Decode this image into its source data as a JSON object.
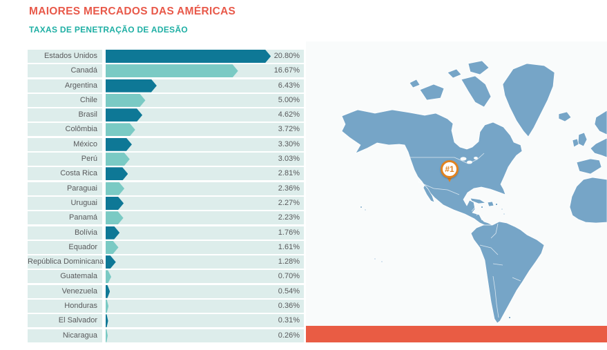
{
  "header": {
    "title": "MAIORES MERCADOS DAS AMÉRICAS",
    "subtitle": "TAXAS DE PENETRAÇÃO DE ADESÃO"
  },
  "chart_data": {
    "type": "bar",
    "orientation": "horizontal",
    "title": "MAIORES MERCADOS DAS AMÉRICAS",
    "subtitle": "TAXAS DE PENETRAÇÃO DE ADESÃO",
    "unit": "%",
    "xlim": [
      0,
      21
    ],
    "grid": false,
    "legend": false,
    "categories": [
      "Estados Unidos",
      "Canadá",
      "Argentina",
      "Chile",
      "Brasil",
      "Colômbia",
      "México",
      "Perú",
      "Costa Rica",
      "Paraguai",
      "Uruguai",
      "Panamá",
      "Bolívia",
      "Equador",
      "República Dominicana",
      "Guatemala",
      "Venezuela",
      "Honduras",
      "El Salvador",
      "Nicaragua"
    ],
    "values": [
      20.8,
      16.67,
      6.43,
      5.0,
      4.62,
      3.72,
      3.3,
      3.03,
      2.81,
      2.36,
      2.27,
      2.23,
      1.76,
      1.61,
      1.28,
      0.7,
      0.54,
      0.36,
      0.31,
      0.26
    ],
    "value_labels": [
      "20.80%",
      "16.67%",
      "6.43%",
      "5.00%",
      "4.62%",
      "3.72%",
      "3.30%",
      "3.03%",
      "2.81%",
      "2.36%",
      "2.27%",
      "2.23%",
      "1.76%",
      "1.61%",
      "1.28%",
      "0.70%",
      "0.54%",
      "0.36%",
      "0.31%",
      "0.26%"
    ],
    "bar_style": "alternating dark/light teal arrows"
  },
  "map": {
    "region": "Americas world map",
    "pin_label": "#1",
    "pin_location": "Estados Unidos"
  },
  "colors": {
    "title": "#E8594A",
    "subtitle": "#1FAFA4",
    "bar_dark": "#0E7896",
    "bar_light": "#7ACAC4",
    "row_bg": "#DDEDEB",
    "value_text": "#58595B",
    "land": "#76A5C7",
    "ocean": "#F9FBFB",
    "accent": "#E95C44",
    "pin": "#E08220"
  }
}
